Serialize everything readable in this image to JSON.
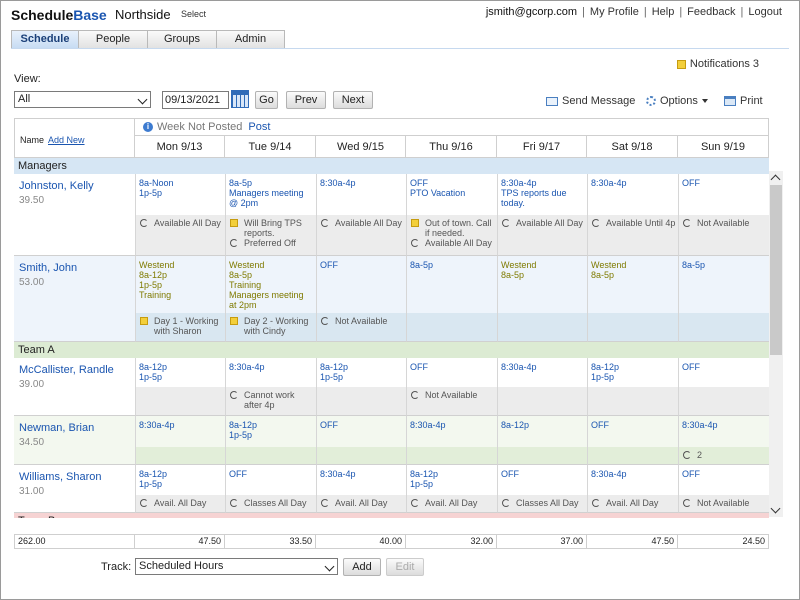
{
  "header": {
    "logo_part1": "Schedule",
    "logo_part2": "Base",
    "location": "Northside",
    "select_link": "Select",
    "email": "jsmith@gcorp.com",
    "links": [
      "My Profile",
      "Help",
      "Feedback",
      "Logout"
    ]
  },
  "tabs": [
    "Schedule",
    "People",
    "Groups",
    "Admin"
  ],
  "active_tab": "Schedule",
  "notifications": {
    "label": "Notifications 3"
  },
  "controls": {
    "view_label": "View:",
    "view_value": "All",
    "date_value": "09/13/2021",
    "go": "Go",
    "prev": "Prev",
    "next": "Next",
    "send_message": "Send Message",
    "options": "Options",
    "print": "Print"
  },
  "grid": {
    "name_header": "Name",
    "add_new": "Add New",
    "week_status": "Week Not Posted",
    "post_link": "Post",
    "days": [
      "Mon 9/13",
      "Tue 9/14",
      "Wed 9/15",
      "Thu 9/16",
      "Fri 9/17",
      "Sat 9/18",
      "Sun 9/19"
    ],
    "groups": {
      "managers": "Managers",
      "team_a": "Team A",
      "team_b": "Team B"
    },
    "employees": [
      {
        "name": "Johnston, Kelly",
        "hours": "39.50",
        "shifts": [
          "8a-Noon\n1p-5p",
          "8a-5p\nManagers meeting\n@ 2pm",
          "8:30a-4p",
          "OFF\nPTO Vacation",
          "8:30a-4p\nTPS reports due\ntoday.",
          "8:30a-4p",
          "OFF"
        ],
        "avail": [
          [
            {
              "i": "sync",
              "t": "Available All Day"
            }
          ],
          [
            {
              "i": "note",
              "t": "Will Bring TPS\nreports."
            },
            {
              "i": "sync",
              "t": "Preferred Off"
            }
          ],
          [
            {
              "i": "sync",
              "t": "Available All Day"
            }
          ],
          [
            {
              "i": "note",
              "t": "Out of town. Call\nif needed."
            },
            {
              "i": "sync",
              "t": "Available All Day"
            }
          ],
          [
            {
              "i": "sync",
              "t": "Available All Day"
            }
          ],
          [
            {
              "i": "sync",
              "t": "Available Until 4p"
            }
          ],
          [
            {
              "i": "sync",
              "t": "Not Available"
            }
          ]
        ]
      },
      {
        "name": "Smith, John",
        "hours": "53.00",
        "shifts": [
          "Westend\n8a-12p\n1p-5p\nTraining",
          "Westend\n8a-5p\nTraining\nManagers meeting\nat 2pm",
          "OFF",
          "8a-5p",
          "Westend\n8a-5p",
          "Westend\n8a-5p",
          "8a-5p"
        ],
        "avail": [
          [
            {
              "i": "note",
              "t": "Day 1 - Working\nwith Sharon"
            }
          ],
          [
            {
              "i": "note",
              "t": "Day 2 - Working\nwith Cindy"
            }
          ],
          [
            {
              "i": "sync",
              "t": "Not Available"
            }
          ],
          [],
          [],
          [],
          []
        ]
      },
      {
        "name": "McCallister, Randle",
        "hours": "39.00",
        "shifts": [
          "8a-12p\n1p-5p",
          "8:30a-4p",
          "8a-12p\n1p-5p",
          "OFF",
          "8:30a-4p",
          "8a-12p\n1p-5p",
          "OFF"
        ],
        "avail": [
          [],
          [
            {
              "i": "sync",
              "t": "Cannot work\nafter 4p"
            }
          ],
          [],
          [
            {
              "i": "sync",
              "t": "Not Available"
            }
          ],
          [],
          [],
          []
        ]
      },
      {
        "name": "Newman, Brian",
        "hours": "34.50",
        "shifts": [
          "8:30a-4p",
          "8a-12p\n1p-5p",
          "OFF",
          "8:30a-4p",
          "8a-12p",
          "OFF",
          "8:30a-4p"
        ],
        "avail": [
          [],
          [],
          [],
          [],
          [],
          [],
          [
            {
              "i": "sync",
              "t": "2"
            }
          ]
        ]
      },
      {
        "name": "Williams, Sharon",
        "hours": "31.00",
        "shifts": [
          "8a-12p\n1p-5p",
          "OFF",
          "8:30a-4p",
          "8a-12p\n1p-5p",
          "OFF",
          "8:30a-4p",
          "OFF"
        ],
        "avail": [
          [
            {
              "i": "sync",
              "t": "Avail. All Day"
            }
          ],
          [
            {
              "i": "sync",
              "t": "Classes All Day"
            }
          ],
          [
            {
              "i": "sync",
              "t": "Avail. All Day"
            }
          ],
          [
            {
              "i": "sync",
              "t": "Avail. All Day"
            }
          ],
          [
            {
              "i": "sync",
              "t": "Classes All Day"
            }
          ],
          [
            {
              "i": "sync",
              "t": "Avail. All Day"
            }
          ],
          [
            {
              "i": "sync",
              "t": "Not Available"
            }
          ]
        ]
      }
    ],
    "totals": [
      "262.00",
      "47.50",
      "33.50",
      "40.00",
      "32.00",
      "37.00",
      "47.50",
      "24.50"
    ]
  },
  "track": {
    "label": "Track:",
    "value": "Scheduled Hours",
    "add": "Add",
    "edit": "Edit"
  }
}
